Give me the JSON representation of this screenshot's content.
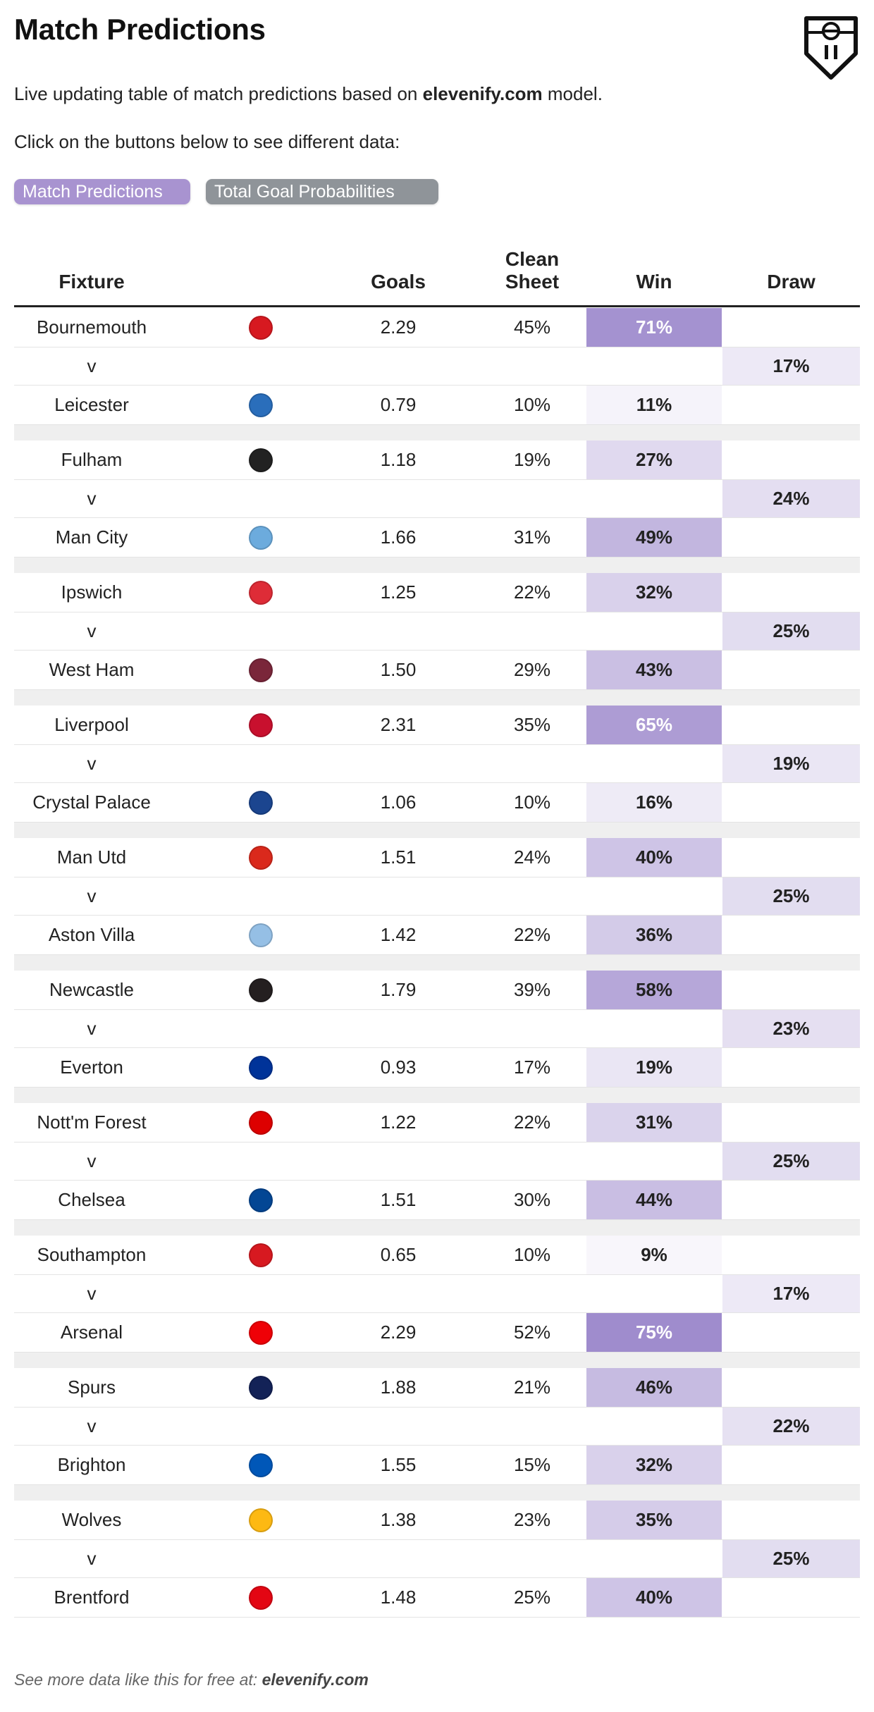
{
  "page": {
    "title": "Match Predictions",
    "description_pre": "Live updating table of match predictions based on ",
    "description_brand": "elevenify.com",
    "description_post": " model.",
    "instruction": "Click on the buttons below to see different data:",
    "footer_pre": "See more data like this for free at: ",
    "footer_brand": "elevenify.com"
  },
  "buttons": {
    "match_predictions": "Match Predictions",
    "total_goal_probabilities": "Total Goal Probabilities"
  },
  "table": {
    "headers": {
      "fixture": "Fixture",
      "goals": "Goals",
      "clean_sheet_line1": "Clean",
      "clean_sheet_line2": "Sheet",
      "win": "Win",
      "draw": "Draw"
    },
    "separator_text": "v",
    "fixtures": [
      {
        "home": {
          "team": "Bournemouth",
          "crest": "afc-bournemouth-crest-icon",
          "crest_color": "#d71920",
          "goals": "2.29",
          "clean_sheet": "45%",
          "win": "71%",
          "win_pct": 71
        },
        "draw": "17%",
        "draw_pct": 17,
        "away": {
          "team": "Leicester",
          "crest": "leicester-crest-icon",
          "crest_color": "#2a6ebb",
          "goals": "0.79",
          "clean_sheet": "10%",
          "win": "11%",
          "win_pct": 11
        }
      },
      {
        "home": {
          "team": "Fulham",
          "crest": "fulham-crest-icon",
          "crest_color": "#222222",
          "goals": "1.18",
          "clean_sheet": "19%",
          "win": "27%",
          "win_pct": 27
        },
        "draw": "24%",
        "draw_pct": 24,
        "away": {
          "team": "Man City",
          "crest": "man-city-crest-icon",
          "crest_color": "#6cabdd",
          "goals": "1.66",
          "clean_sheet": "31%",
          "win": "49%",
          "win_pct": 49
        }
      },
      {
        "home": {
          "team": "Ipswich",
          "crest": "ipswich-crest-icon",
          "crest_color": "#de2c37",
          "goals": "1.25",
          "clean_sheet": "22%",
          "win": "32%",
          "win_pct": 32
        },
        "draw": "25%",
        "draw_pct": 25,
        "away": {
          "team": "West Ham",
          "crest": "west-ham-crest-icon",
          "crest_color": "#7a263a",
          "goals": "1.50",
          "clean_sheet": "29%",
          "win": "43%",
          "win_pct": 43
        }
      },
      {
        "home": {
          "team": "Liverpool",
          "crest": "liverpool-crest-icon",
          "crest_color": "#c8102e",
          "goals": "2.31",
          "clean_sheet": "35%",
          "win": "65%",
          "win_pct": 65
        },
        "draw": "19%",
        "draw_pct": 19,
        "away": {
          "team": "Crystal Palace",
          "crest": "crystal-palace-crest-icon",
          "crest_color": "#1b458f",
          "goals": "1.06",
          "clean_sheet": "10%",
          "win": "16%",
          "win_pct": 16
        }
      },
      {
        "home": {
          "team": "Man Utd",
          "crest": "man-utd-crest-icon",
          "crest_color": "#da291c",
          "goals": "1.51",
          "clean_sheet": "24%",
          "win": "40%",
          "win_pct": 40
        },
        "draw": "25%",
        "draw_pct": 25,
        "away": {
          "team": "Aston Villa",
          "crest": "aston-villa-crest-icon",
          "crest_color": "#95bfe5",
          "goals": "1.42",
          "clean_sheet": "22%",
          "win": "36%",
          "win_pct": 36
        }
      },
      {
        "home": {
          "team": "Newcastle",
          "crest": "newcastle-crest-icon",
          "crest_color": "#241f20",
          "goals": "1.79",
          "clean_sheet": "39%",
          "win": "58%",
          "win_pct": 58
        },
        "draw": "23%",
        "draw_pct": 23,
        "away": {
          "team": "Everton",
          "crest": "everton-crest-icon",
          "crest_color": "#003399",
          "goals": "0.93",
          "clean_sheet": "17%",
          "win": "19%",
          "win_pct": 19
        }
      },
      {
        "home": {
          "team": "Nott'm Forest",
          "crest": "nottm-forest-crest-icon",
          "crest_color": "#dd0000",
          "goals": "1.22",
          "clean_sheet": "22%",
          "win": "31%",
          "win_pct": 31
        },
        "draw": "25%",
        "draw_pct": 25,
        "away": {
          "team": "Chelsea",
          "crest": "chelsea-crest-icon",
          "crest_color": "#034694",
          "goals": "1.51",
          "clean_sheet": "30%",
          "win": "44%",
          "win_pct": 44
        }
      },
      {
        "home": {
          "team": "Southampton",
          "crest": "southampton-crest-icon",
          "crest_color": "#d71920",
          "goals": "0.65",
          "clean_sheet": "10%",
          "win": "9%",
          "win_pct": 9
        },
        "draw": "17%",
        "draw_pct": 17,
        "away": {
          "team": "Arsenal",
          "crest": "arsenal-crest-icon",
          "crest_color": "#ef0107",
          "goals": "2.29",
          "clean_sheet": "52%",
          "win": "75%",
          "win_pct": 75
        }
      },
      {
        "home": {
          "team": "Spurs",
          "crest": "spurs-crest-icon",
          "crest_color": "#132257",
          "goals": "1.88",
          "clean_sheet": "21%",
          "win": "46%",
          "win_pct": 46
        },
        "draw": "22%",
        "draw_pct": 22,
        "away": {
          "team": "Brighton",
          "crest": "brighton-crest-icon",
          "crest_color": "#0057b8",
          "goals": "1.55",
          "clean_sheet": "15%",
          "win": "32%",
          "win_pct": 32
        }
      },
      {
        "home": {
          "team": "Wolves",
          "crest": "wolves-crest-icon",
          "crest_color": "#fdb913",
          "goals": "1.38",
          "clean_sheet": "23%",
          "win": "35%",
          "win_pct": 35
        },
        "draw": "25%",
        "draw_pct": 25,
        "away": {
          "team": "Brentford",
          "crest": "brentford-crest-icon",
          "crest_color": "#e30613",
          "goals": "1.48",
          "clean_sheet": "25%",
          "win": "40%",
          "win_pct": 40
        }
      }
    ]
  },
  "colors": {
    "accent": "#a893d0",
    "secondary_button": "#8f9499",
    "heat_base": "#9b87cb"
  }
}
